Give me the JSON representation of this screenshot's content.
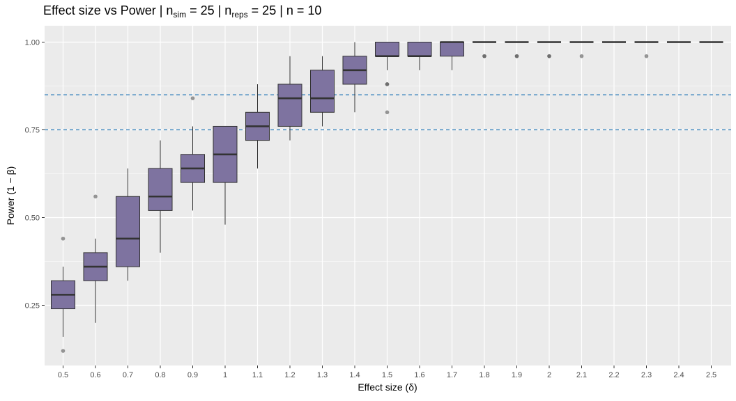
{
  "chart_data": {
    "type": "boxplot",
    "title_parts": [
      "Effect size vs Power | n",
      "sim",
      " = 25 | n",
      "reps",
      " = 25 | n = 10"
    ],
    "xlabel": "Effect size (δ)",
    "ylabel": "Power (1 − β)",
    "ylim": [
      0.1,
      1.03
    ],
    "yticks": [
      0.25,
      0.5,
      0.75,
      1.0
    ],
    "ytick_labels": [
      "0.25",
      "0.50",
      "0.75",
      "1.00"
    ],
    "categories": [
      "0.5",
      "0.6",
      "0.7",
      "0.8",
      "0.9",
      "1",
      "1.1",
      "1.2",
      "1.3",
      "1.4",
      "1.5",
      "1.6",
      "1.7",
      "1.8",
      "1.9",
      "2",
      "2.1",
      "2.2",
      "2.3",
      "2.4",
      "2.5"
    ],
    "boxes": [
      {
        "x": "0.5",
        "q1": 0.24,
        "median": 0.28,
        "q3": 0.32,
        "whisker_low": 0.16,
        "whisker_high": 0.36,
        "outliers": [
          0.44,
          0.12
        ]
      },
      {
        "x": "0.6",
        "q1": 0.32,
        "median": 0.36,
        "q3": 0.4,
        "whisker_low": 0.2,
        "whisker_high": 0.44,
        "outliers": [
          0.56
        ]
      },
      {
        "x": "0.7",
        "q1": 0.36,
        "median": 0.44,
        "q3": 0.56,
        "whisker_low": 0.32,
        "whisker_high": 0.64,
        "outliers": []
      },
      {
        "x": "0.8",
        "q1": 0.52,
        "median": 0.56,
        "q3": 0.64,
        "whisker_low": 0.4,
        "whisker_high": 0.72,
        "outliers": []
      },
      {
        "x": "0.9",
        "q1": 0.6,
        "median": 0.64,
        "q3": 0.68,
        "whisker_low": 0.52,
        "whisker_high": 0.76,
        "outliers": [
          0.84
        ]
      },
      {
        "x": "1",
        "q1": 0.6,
        "median": 0.68,
        "q3": 0.76,
        "whisker_low": 0.48,
        "whisker_high": 0.76,
        "outliers": []
      },
      {
        "x": "1.1",
        "q1": 0.72,
        "median": 0.76,
        "q3": 0.8,
        "whisker_low": 0.64,
        "whisker_high": 0.88,
        "outliers": []
      },
      {
        "x": "1.2",
        "q1": 0.76,
        "median": 0.84,
        "q3": 0.88,
        "whisker_low": 0.72,
        "whisker_high": 0.96,
        "outliers": []
      },
      {
        "x": "1.3",
        "q1": 0.8,
        "median": 0.84,
        "q3": 0.92,
        "whisker_low": 0.76,
        "whisker_high": 0.96,
        "outliers": []
      },
      {
        "x": "1.4",
        "q1": 0.88,
        "median": 0.92,
        "q3": 0.96,
        "whisker_low": 0.8,
        "whisker_high": 1.0,
        "outliers": []
      },
      {
        "x": "1.5",
        "q1": 0.96,
        "median": 0.96,
        "q3": 1.0,
        "whisker_low": 0.92,
        "whisker_high": 1.0,
        "outliers": [
          0.88,
          0.88,
          0.8
        ]
      },
      {
        "x": "1.6",
        "q1": 0.96,
        "median": 0.96,
        "q3": 1.0,
        "whisker_low": 0.92,
        "whisker_high": 1.0,
        "outliers": []
      },
      {
        "x": "1.7",
        "q1": 0.96,
        "median": 1.0,
        "q3": 1.0,
        "whisker_low": 0.92,
        "whisker_high": 1.0,
        "outliers": []
      },
      {
        "x": "1.8",
        "q1": 1.0,
        "median": 1.0,
        "q3": 1.0,
        "whisker_low": 1.0,
        "whisker_high": 1.0,
        "outliers": [
          0.96,
          0.96
        ]
      },
      {
        "x": "1.9",
        "q1": 1.0,
        "median": 1.0,
        "q3": 1.0,
        "whisker_low": 1.0,
        "whisker_high": 1.0,
        "outliers": [
          0.96,
          0.96
        ]
      },
      {
        "x": "2",
        "q1": 1.0,
        "median": 1.0,
        "q3": 1.0,
        "whisker_low": 1.0,
        "whisker_high": 1.0,
        "outliers": [
          0.96,
          0.96
        ]
      },
      {
        "x": "2.1",
        "q1": 1.0,
        "median": 1.0,
        "q3": 1.0,
        "whisker_low": 1.0,
        "whisker_high": 1.0,
        "outliers": [
          0.96
        ]
      },
      {
        "x": "2.2",
        "q1": 1.0,
        "median": 1.0,
        "q3": 1.0,
        "whisker_low": 1.0,
        "whisker_high": 1.0,
        "outliers": []
      },
      {
        "x": "2.3",
        "q1": 1.0,
        "median": 1.0,
        "q3": 1.0,
        "whisker_low": 1.0,
        "whisker_high": 1.0,
        "outliers": [
          0.96
        ]
      },
      {
        "x": "2.4",
        "q1": 1.0,
        "median": 1.0,
        "q3": 1.0,
        "whisker_low": 1.0,
        "whisker_high": 1.0,
        "outliers": []
      },
      {
        "x": "2.5",
        "q1": 1.0,
        "median": 1.0,
        "q3": 1.0,
        "whisker_low": 1.0,
        "whisker_high": 1.0,
        "outliers": []
      }
    ],
    "reference_lines": [
      0.85,
      0.75
    ],
    "colors": {
      "panel_background": "#ebebeb",
      "grid": "#ffffff",
      "box_fill": "#7e73a0",
      "box_stroke": "#333333",
      "reference_line": "#2b7bb9",
      "outlier": "#555555"
    },
    "grid": true,
    "legend": "none"
  }
}
